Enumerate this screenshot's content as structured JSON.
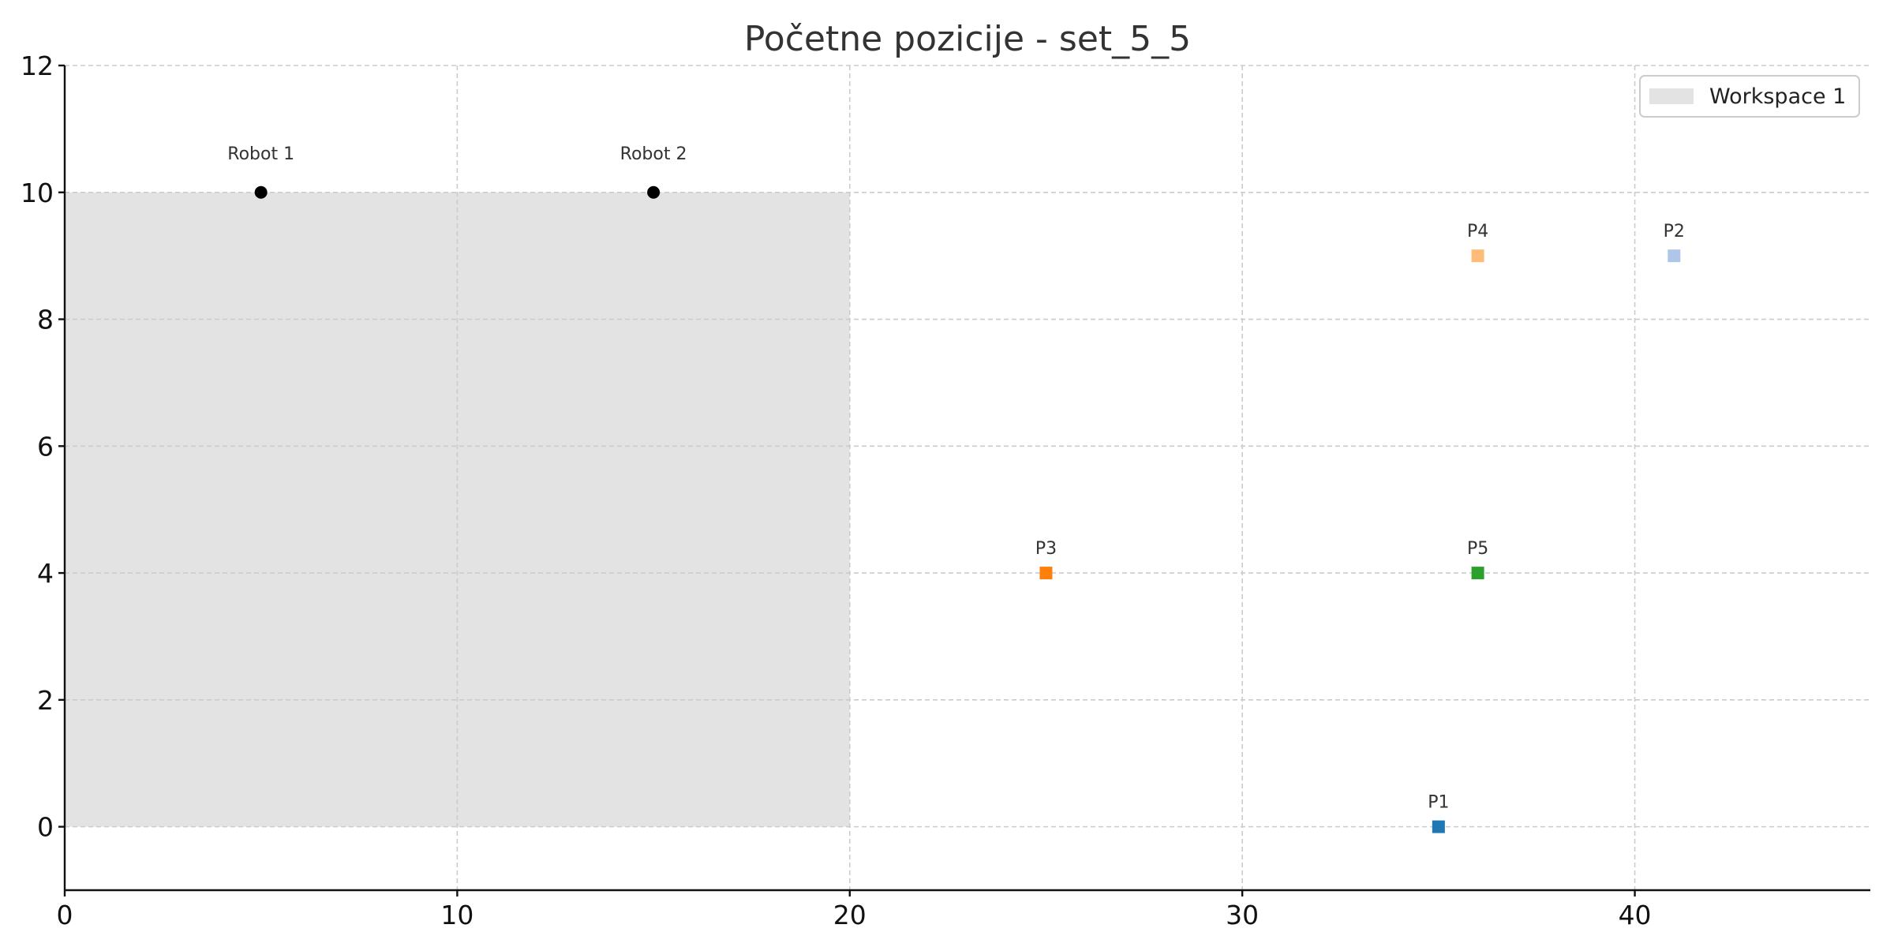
{
  "chart_data": {
    "type": "scatter",
    "title": "Početne pozicije - set_5_5",
    "xlabel": "",
    "ylabel": "",
    "xlim": [
      0,
      46
    ],
    "ylim": [
      -1,
      12
    ],
    "x_ticks": [
      0,
      10,
      20,
      30,
      40
    ],
    "y_ticks": [
      0,
      2,
      4,
      6,
      8,
      10,
      12
    ],
    "grid": true,
    "legend": {
      "position": "top-right",
      "entries": [
        "Workspace 1"
      ]
    },
    "workspaces": [
      {
        "name": "Workspace 1",
        "x": [
          0,
          20
        ],
        "y": [
          0,
          10
        ],
        "color": "#e3e3e3"
      }
    ],
    "robots": [
      {
        "label": "Robot 1",
        "x": 5,
        "y": 10,
        "color": "#000000"
      },
      {
        "label": "Robot 2",
        "x": 15,
        "y": 10,
        "color": "#000000"
      }
    ],
    "points": [
      {
        "label": "P1",
        "x": 35,
        "y": 0,
        "color": "#1f77b4"
      },
      {
        "label": "P2",
        "x": 41,
        "y": 9,
        "color": "#aec7e8"
      },
      {
        "label": "P3",
        "x": 25,
        "y": 4,
        "color": "#ff7f0e"
      },
      {
        "label": "P4",
        "x": 36,
        "y": 9,
        "color": "#ffbb78"
      },
      {
        "label": "P5",
        "x": 36,
        "y": 4,
        "color": "#2ca02c"
      }
    ]
  }
}
